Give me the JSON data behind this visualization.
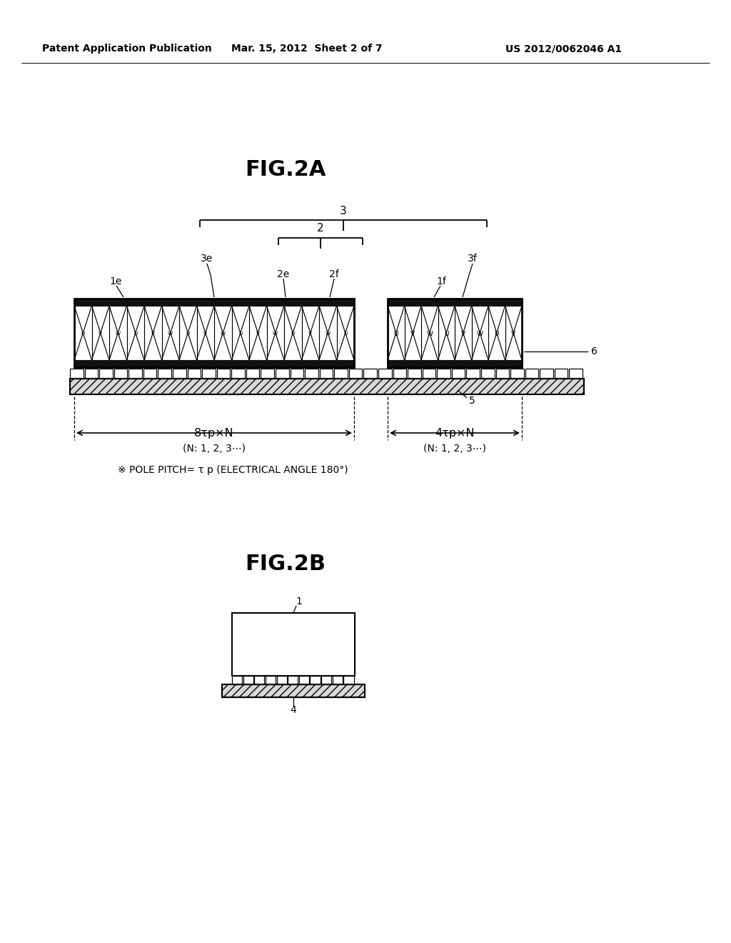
{
  "bg_color": "#ffffff",
  "header_left": "Patent Application Publication",
  "header_mid": "Mar. 15, 2012  Sheet 2 of 7",
  "header_right": "US 2012/0062046 A1",
  "fig2a_title": "FIG.2A",
  "fig2b_title": "FIG.2B",
  "label_1e": "1e",
  "label_1f": "1f",
  "label_2": "2",
  "label_2e": "2e",
  "label_2f": "2f",
  "label_3": "3",
  "label_3e": "3e",
  "label_3f": "3f",
  "label_4": "4",
  "label_5": "5",
  "label_6": "6",
  "label_1": "1",
  "dim_label_left": "8τp×N",
  "dim_label_left2": "(N: 1, 2, 3⋯)",
  "dim_label_right": "4τp×N",
  "dim_label_right2": "(N: 1, 2, 3⋯)",
  "note_text": "※ POLE PITCH= τ p (ELECTRICAL ANGLE 180°)",
  "line_color": "#000000"
}
